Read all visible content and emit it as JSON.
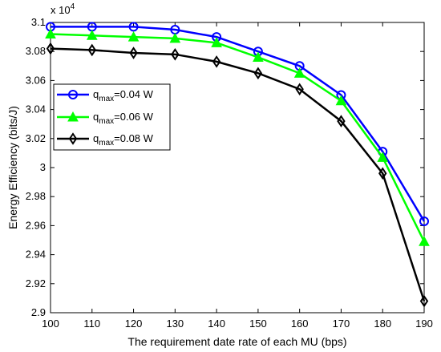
{
  "chart_data": {
    "type": "line",
    "xlabel": "The requirement date rate of each MU (bps)",
    "ylabel": "Energy  Efficiency (bits/J)",
    "y_multiplier_label": "x 10",
    "y_multiplier_exponent": "4",
    "x": [
      100,
      110,
      120,
      130,
      140,
      150,
      160,
      170,
      180,
      190
    ],
    "xlim": [
      100,
      190
    ],
    "ylim": [
      2.9,
      3.1
    ],
    "x_ticks": [
      "100",
      "110",
      "120",
      "130",
      "140",
      "150",
      "160",
      "170",
      "180",
      "190"
    ],
    "y_ticks": [
      "2.9",
      "2.92",
      "2.94",
      "2.96",
      "2.98",
      "3",
      "3.02",
      "3.04",
      "3.06",
      "3.08",
      "3.1"
    ],
    "grid": false,
    "legend_position": "left",
    "series": [
      {
        "name_prefix": "q",
        "name_sub": "max",
        "name_suffix": "=0.04 W",
        "color": "#0000ff",
        "marker": "circle",
        "values": [
          3.097,
          3.097,
          3.097,
          3.095,
          3.09,
          3.08,
          3.07,
          3.05,
          3.011,
          2.963
        ]
      },
      {
        "name_prefix": "q",
        "name_sub": "max",
        "name_suffix": "=0.06 W",
        "color": "#00ff00",
        "marker": "triangle",
        "values": [
          3.092,
          3.091,
          3.09,
          3.089,
          3.086,
          3.076,
          3.065,
          3.046,
          3.007,
          2.949
        ]
      },
      {
        "name_prefix": "q",
        "name_sub": "max",
        "name_suffix": "=0.08 W",
        "color": "#000000",
        "marker": "diamond",
        "values": [
          3.082,
          3.081,
          3.079,
          3.078,
          3.073,
          3.065,
          3.054,
          3.032,
          2.996,
          2.908
        ]
      }
    ]
  }
}
